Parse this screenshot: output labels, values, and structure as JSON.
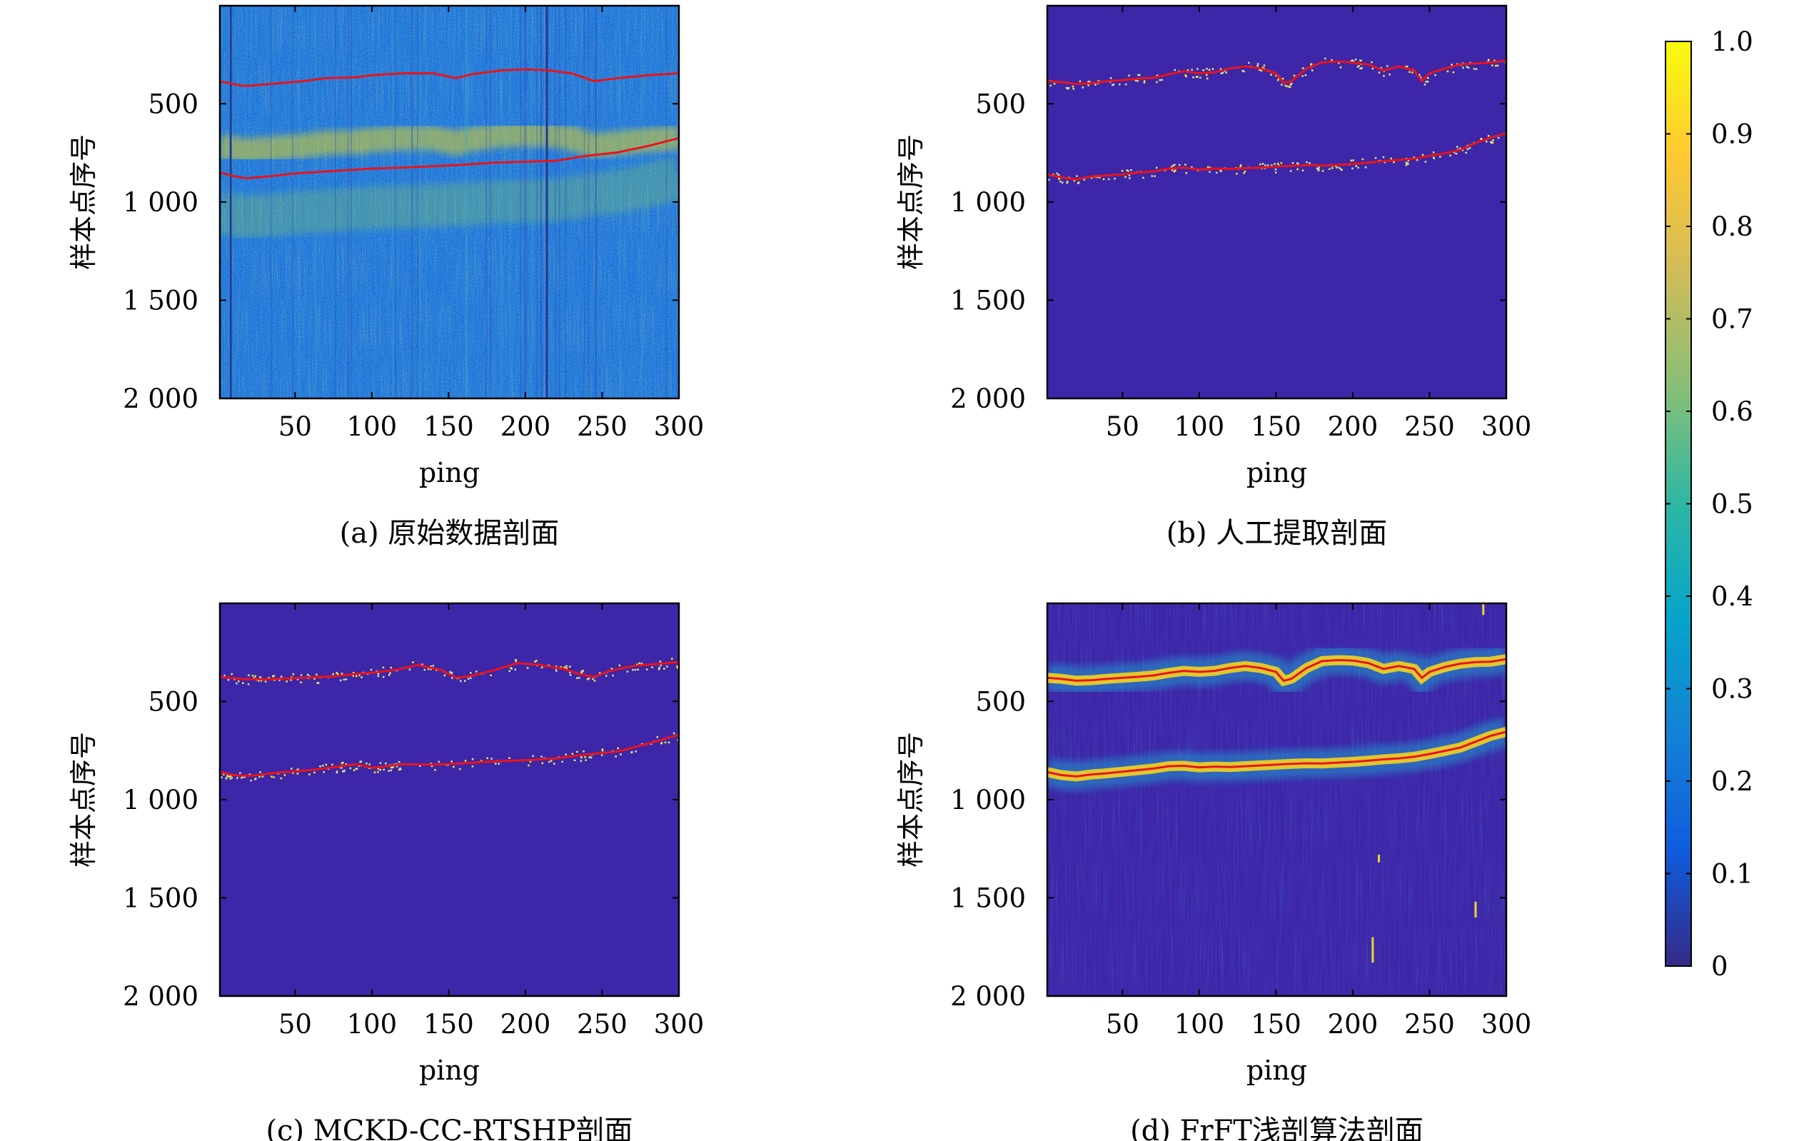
{
  "chart_data": [
    {
      "type": "heatmap",
      "caption": "(a) 原始数据剖面",
      "xlabel": "ping",
      "ylabel": "样本点序号",
      "xlim": [
        1,
        300
      ],
      "ylim": [
        2000,
        1
      ],
      "xticks": [
        50,
        100,
        150,
        200,
        250,
        300
      ],
      "xtick_labels": [
        "50",
        "100",
        "150",
        "200",
        "250",
        "300"
      ],
      "yticks": [
        500,
        1000,
        1500,
        2000
      ],
      "ytick_labels": [
        "500",
        "1 000",
        "1 500",
        "2 000"
      ],
      "layers": [
        {
          "x": [
            1,
            10,
            17,
            25,
            40,
            55,
            70,
            90,
            100,
            120,
            140,
            155,
            165,
            185,
            200,
            215,
            230,
            245,
            260,
            280,
            300
          ],
          "y": [
            385,
            400,
            410,
            405,
            395,
            385,
            370,
            365,
            355,
            345,
            345,
            370,
            350,
            330,
            325,
            330,
            345,
            385,
            370,
            355,
            345
          ]
        },
        {
          "x": [
            1,
            8,
            18,
            30,
            50,
            70,
            100,
            120,
            140,
            160,
            180,
            200,
            220,
            240,
            260,
            280,
            300
          ],
          "y": [
            850,
            865,
            880,
            872,
            855,
            845,
            830,
            825,
            818,
            810,
            800,
            795,
            790,
            765,
            748,
            715,
            675
          ]
        }
      ]
    },
    {
      "type": "heatmap",
      "caption": "(b) 人工提取剖面",
      "xlabel": "ping",
      "ylabel": "样本点序号",
      "xlim": [
        1,
        300
      ],
      "ylim": [
        2000,
        1
      ],
      "xticks": [
        50,
        100,
        150,
        200,
        250,
        300
      ],
      "xtick_labels": [
        "50",
        "100",
        "150",
        "200",
        "250",
        "300"
      ],
      "yticks": [
        500,
        1000,
        1500,
        2000
      ],
      "ytick_labels": [
        "500",
        "1 000",
        "1 500",
        "2 000"
      ],
      "layers": [
        {
          "x": [
            1,
            10,
            20,
            30,
            40,
            50,
            60,
            70,
            80,
            90,
            100,
            110,
            120,
            130,
            140,
            150,
            155,
            160,
            170,
            180,
            190,
            200,
            210,
            220,
            230,
            240,
            245,
            250,
            260,
            270,
            280,
            290,
            300
          ],
          "y": [
            385,
            390,
            400,
            395,
            385,
            380,
            372,
            368,
            350,
            335,
            345,
            340,
            320,
            310,
            320,
            345,
            395,
            385,
            320,
            290,
            285,
            290,
            300,
            330,
            310,
            330,
            385,
            345,
            320,
            300,
            295,
            290,
            280
          ]
        },
        {
          "x": [
            1,
            10,
            20,
            30,
            40,
            50,
            60,
            70,
            80,
            90,
            100,
            110,
            120,
            130,
            140,
            150,
            160,
            170,
            180,
            190,
            200,
            210,
            220,
            230,
            240,
            250,
            260,
            270,
            280,
            290,
            300
          ],
          "y": [
            860,
            875,
            885,
            870,
            865,
            860,
            850,
            845,
            830,
            825,
            835,
            830,
            832,
            828,
            825,
            820,
            816,
            813,
            815,
            811,
            806,
            800,
            792,
            786,
            780,
            765,
            752,
            735,
            700,
            672,
            650
          ]
        }
      ]
    },
    {
      "type": "heatmap",
      "caption": "(c) MCKD-CC-RTSHP剖面",
      "xlabel": "ping",
      "ylabel": "样本点序号",
      "xlim": [
        1,
        300
      ],
      "ylim": [
        2000,
        1
      ],
      "xticks": [
        50,
        100,
        150,
        200,
        250,
        300
      ],
      "xtick_labels": [
        "50",
        "100",
        "150",
        "200",
        "250",
        "300"
      ],
      "yticks": [
        500,
        1000,
        1500,
        2000
      ],
      "ytick_labels": [
        "500",
        "1 000",
        "1 500",
        "2 000"
      ],
      "layers": [
        {
          "x": [
            1,
            15,
            30,
            45,
            60,
            75,
            90,
            100,
            115,
            130,
            145,
            155,
            165,
            180,
            195,
            210,
            225,
            235,
            245,
            255,
            270,
            285,
            300
          ],
          "y": [
            375,
            385,
            388,
            383,
            378,
            373,
            360,
            355,
            340,
            315,
            340,
            380,
            370,
            340,
            305,
            315,
            335,
            360,
            375,
            345,
            320,
            310,
            300
          ]
        },
        {
          "x": [
            1,
            10,
            20,
            40,
            60,
            80,
            90,
            100,
            110,
            120,
            140,
            160,
            180,
            200,
            220,
            240,
            260,
            280,
            300
          ],
          "y": [
            860,
            875,
            880,
            862,
            850,
            830,
            820,
            838,
            830,
            820,
            822,
            815,
            805,
            800,
            790,
            770,
            755,
            715,
            670
          ]
        }
      ]
    },
    {
      "type": "heatmap",
      "caption": "(d) FrFT浅剖算法剖面",
      "xlabel": "ping",
      "ylabel": "样本点序号",
      "xlim": [
        1,
        300
      ],
      "ylim": [
        2000,
        1
      ],
      "xticks": [
        50,
        100,
        150,
        200,
        250,
        300
      ],
      "xtick_labels": [
        "50",
        "100",
        "150",
        "200",
        "250",
        "300"
      ],
      "yticks": [
        500,
        1000,
        1500,
        2000
      ],
      "ytick_labels": [
        "500",
        "1 000",
        "1 500",
        "2 000"
      ],
      "layers": [
        {
          "x": [
            1,
            10,
            20,
            30,
            40,
            50,
            60,
            70,
            80,
            90,
            100,
            110,
            120,
            130,
            140,
            150,
            155,
            160,
            170,
            180,
            190,
            200,
            210,
            220,
            230,
            240,
            245,
            250,
            260,
            270,
            280,
            290,
            300
          ],
          "y": [
            380,
            385,
            395,
            392,
            385,
            380,
            375,
            368,
            355,
            345,
            350,
            345,
            330,
            320,
            330,
            350,
            395,
            385,
            330,
            295,
            290,
            292,
            305,
            335,
            320,
            335,
            380,
            350,
            325,
            308,
            300,
            298,
            285
          ]
        },
        {
          "x": [
            1,
            10,
            20,
            30,
            40,
            50,
            60,
            70,
            80,
            90,
            100,
            110,
            120,
            130,
            140,
            150,
            160,
            170,
            180,
            190,
            200,
            210,
            220,
            230,
            240,
            250,
            260,
            270,
            280,
            290,
            300
          ],
          "y": [
            860,
            875,
            882,
            872,
            866,
            858,
            850,
            842,
            830,
            828,
            836,
            832,
            834,
            830,
            826,
            822,
            818,
            815,
            816,
            812,
            808,
            802,
            795,
            790,
            782,
            768,
            752,
            735,
            705,
            675,
            655
          ]
        }
      ]
    }
  ],
  "colorbar": {
    "colormap": "parula",
    "range": [
      0,
      1
    ],
    "ticks": [
      0,
      0.1,
      0.2,
      0.3,
      0.4,
      0.5,
      0.6,
      0.7,
      0.8,
      0.9,
      1.0
    ],
    "tick_labels": [
      "0",
      "0.1",
      "0.2",
      "0.3",
      "0.4",
      "0.5",
      "0.6",
      "0.7",
      "0.8",
      "0.9",
      "1.0"
    ],
    "stops": [
      "#352a87",
      "#0f5cdd",
      "#1481d6",
      "#06a4ca",
      "#2eb7a4",
      "#87bf77",
      "#d1bb59",
      "#fec832",
      "#f9fb0e"
    ]
  },
  "colors": {
    "background_dark": "#3e26a8",
    "interface_line": "#e8141c"
  }
}
